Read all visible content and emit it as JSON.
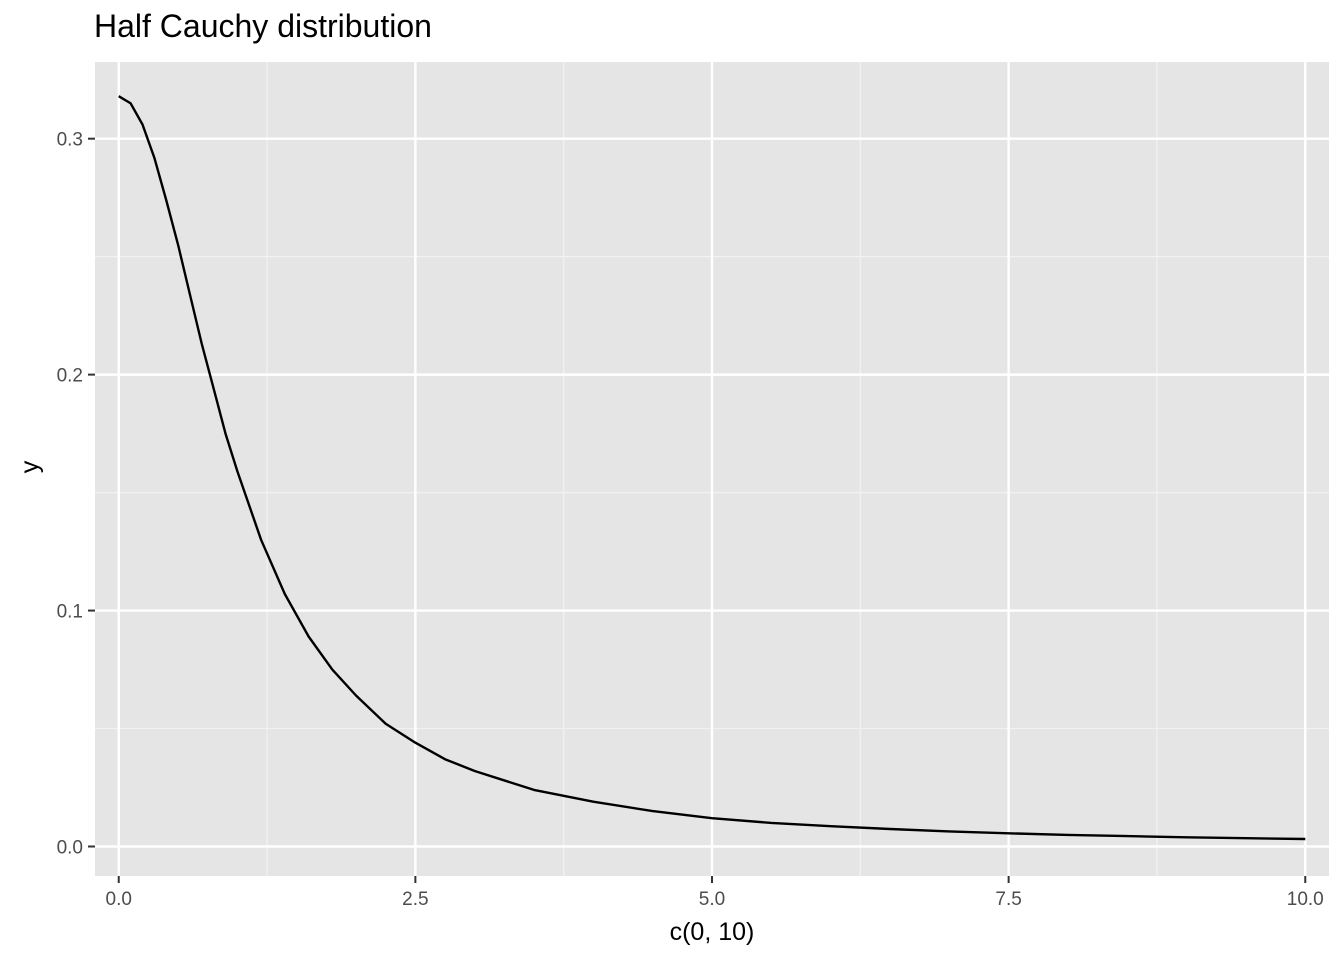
{
  "chart_data": {
    "type": "line",
    "title": "Half Cauchy distribution",
    "xlabel": "c(0, 10)",
    "ylabel": "y",
    "xlim": [
      -0.2,
      10.2
    ],
    "ylim": [
      -0.0125,
      0.3325
    ],
    "x_ticks": [
      0.0,
      2.5,
      5.0,
      7.5,
      10.0
    ],
    "x_tick_labels": [
      "0.0",
      "2.5",
      "5.0",
      "7.5",
      "10.0"
    ],
    "y_ticks": [
      0.0,
      0.1,
      0.2,
      0.3
    ],
    "y_tick_labels": [
      "0.0",
      "0.1",
      "0.2",
      "0.3"
    ],
    "grid": true,
    "series": [
      {
        "color": "#000000",
        "x": [
          0,
          0.1,
          0.2,
          0.3,
          0.4,
          0.5,
          0.6,
          0.7,
          0.8,
          0.9,
          1.0,
          1.2,
          1.4,
          1.6,
          1.8,
          2.0,
          2.25,
          2.5,
          2.75,
          3.0,
          3.5,
          4.0,
          4.5,
          5.0,
          5.5,
          6.0,
          6.5,
          7.0,
          7.5,
          8.0,
          8.5,
          9.0,
          9.5,
          10.0
        ],
        "y": [
          0.318,
          0.315,
          0.306,
          0.292,
          0.274,
          0.255,
          0.234,
          0.213,
          0.194,
          0.175,
          0.159,
          0.13,
          0.107,
          0.089,
          0.075,
          0.064,
          0.052,
          0.044,
          0.037,
          0.032,
          0.024,
          0.019,
          0.015,
          0.012,
          0.01,
          0.0086,
          0.0074,
          0.0064,
          0.0056,
          0.0049,
          0.0044,
          0.0039,
          0.0035,
          0.0032
        ]
      }
    ]
  }
}
